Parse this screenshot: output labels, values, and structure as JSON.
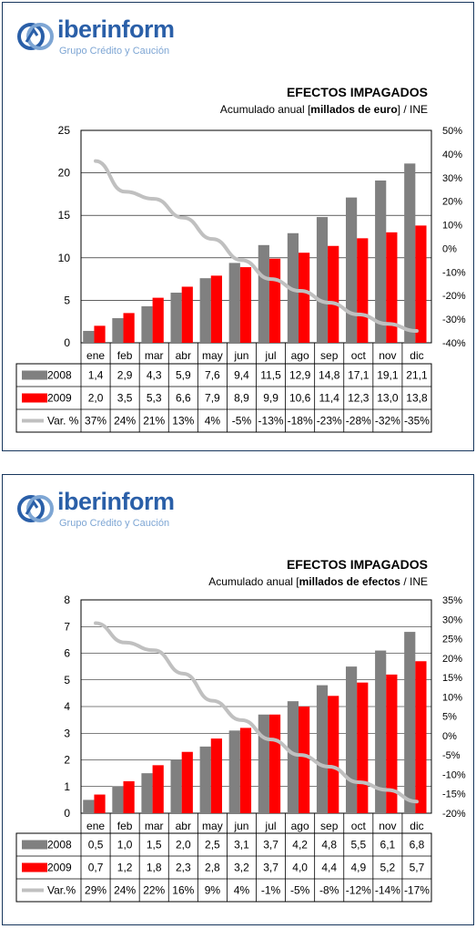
{
  "brand": {
    "name_part1": "iber",
    "name_part2": "inform",
    "tagline": "Grupo Crédito y Caución"
  },
  "colors": {
    "series_2008": "#808080",
    "series_2009": "#ff0000",
    "series_var": "#c0c0c0",
    "frame": "#17365d",
    "brand": "#2a5fa8"
  },
  "chart_data": [
    {
      "type": "bar",
      "title": "EFECTOS IMPAGADOS",
      "subtitle_prefix": "Acumulado anual [",
      "subtitle_bold": "millados de euro",
      "subtitle_suffix": "] / INE",
      "categories": [
        "ene",
        "feb",
        "mar",
        "abr",
        "may",
        "jun",
        "jul",
        "ago",
        "sep",
        "oct",
        "nov",
        "dic"
      ],
      "series": [
        {
          "name": "2008",
          "values": [
            1.4,
            2.9,
            4.3,
            5.9,
            7.6,
            9.4,
            11.5,
            12.9,
            14.8,
            17.1,
            19.1,
            21.1
          ],
          "labels": [
            "1,4",
            "2,9",
            "4,3",
            "5,9",
            "7,6",
            "9,4",
            "11,5",
            "12,9",
            "14,8",
            "17,1",
            "19,1",
            "21,1"
          ]
        },
        {
          "name": "2009",
          "values": [
            2.0,
            3.5,
            5.3,
            6.6,
            7.9,
            8.9,
            9.9,
            10.6,
            11.4,
            12.3,
            13.0,
            13.8
          ],
          "labels": [
            "2,0",
            "3,5",
            "5,3",
            "6,6",
            "7,9",
            "8,9",
            "9,9",
            "10,6",
            "11,4",
            "12,3",
            "13,0",
            "13,8"
          ]
        },
        {
          "name": "Var. %",
          "axis": "secondary",
          "values": [
            37,
            24,
            21,
            13,
            4,
            -5,
            -13,
            -18,
            -23,
            -28,
            -32,
            -35
          ],
          "labels": [
            "37%",
            "24%",
            "21%",
            "13%",
            "4%",
            "-5%",
            "-13%",
            "-18%",
            "-23%",
            "-28%",
            "-32%",
            "-35%"
          ]
        }
      ],
      "ylim": [
        0,
        25
      ],
      "yticks": [
        "0",
        "5",
        "10",
        "15",
        "20",
        "25"
      ],
      "y2lim": [
        -40,
        50
      ],
      "y2ticks": [
        "-40%",
        "-30%",
        "-20%",
        "-10%",
        "0%",
        "10%",
        "20%",
        "30%",
        "40%",
        "50%"
      ],
      "grid": true,
      "legend": "data-table"
    },
    {
      "type": "bar",
      "title": "EFECTOS IMPAGADOS",
      "subtitle_prefix": "Acumulado anual [",
      "subtitle_bold": "millados de efectos",
      "subtitle_suffix": " / INE",
      "categories": [
        "ene",
        "feb",
        "mar",
        "abr",
        "may",
        "jun",
        "jul",
        "ago",
        "sep",
        "oct",
        "nov",
        "dic"
      ],
      "series": [
        {
          "name": "2008",
          "values": [
            0.5,
            1.0,
            1.5,
            2.0,
            2.5,
            3.1,
            3.7,
            4.2,
            4.8,
            5.5,
            6.1,
            6.8
          ],
          "labels": [
            "0,5",
            "1,0",
            "1,5",
            "2,0",
            "2,5",
            "3,1",
            "3,7",
            "4,2",
            "4,8",
            "5,5",
            "6,1",
            "6,8"
          ]
        },
        {
          "name": "2009",
          "values": [
            0.7,
            1.2,
            1.8,
            2.3,
            2.8,
            3.2,
            3.7,
            4.0,
            4.4,
            4.9,
            5.2,
            5.7
          ],
          "labels": [
            "0,7",
            "1,2",
            "1,8",
            "2,3",
            "2,8",
            "3,2",
            "3,7",
            "4,0",
            "4,4",
            "4,9",
            "5,2",
            "5,7"
          ]
        },
        {
          "name": "Var.%",
          "axis": "secondary",
          "values": [
            29,
            24,
            22,
            16,
            9,
            4,
            -1,
            -5,
            -8,
            -12,
            -14,
            -17
          ],
          "labels": [
            "29%",
            "24%",
            "22%",
            "16%",
            "9%",
            "4%",
            "-1%",
            "-5%",
            "-8%",
            "-12%",
            "-14%",
            "-17%"
          ]
        }
      ],
      "ylim": [
        0,
        8
      ],
      "yticks": [
        "0",
        "1",
        "2",
        "3",
        "4",
        "5",
        "6",
        "7",
        "8"
      ],
      "y2lim": [
        -20,
        35
      ],
      "y2ticks": [
        "-20%",
        "-15%",
        "-10%",
        "-5%",
        "0%",
        "5%",
        "10%",
        "15%",
        "20%",
        "25%",
        "30%",
        "35%"
      ],
      "grid": true,
      "legend": "data-table"
    }
  ]
}
